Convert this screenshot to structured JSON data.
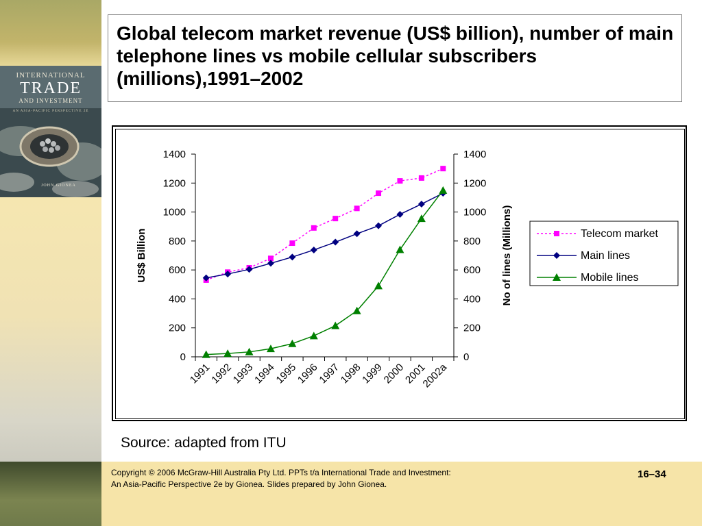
{
  "slide": {
    "title": "Global telecom market revenue (US$ billion), number of main telephone lines vs mobile cellular subscribers (millions),1991–2002",
    "source": "Source: adapted from ITU",
    "copyright_line1": "Copyright © 2006 McGraw-Hill Australia Pty Ltd. PPTs t/a International Trade and Investment:",
    "copyright_line2": "An Asia-Pacific Perspective 2e by Gionea. Slides prepared by John Gionea.",
    "slide_number": "16–34"
  },
  "cover": {
    "line1": "INTERNATIONAL",
    "line2": "TRADE",
    "line3": "AND INVESTMENT",
    "line4": "AN ASIA-PACIFIC PERSPECTIVE 2E",
    "author": "JOHN GIONEA"
  },
  "chart_data": {
    "type": "line",
    "title": "",
    "x": [
      "1991",
      "1992",
      "1993",
      "1994",
      "1995",
      "1996",
      "1997",
      "1998",
      "1999",
      "2000",
      "2001",
      "2002a"
    ],
    "ylabel_left": "US$ Billion",
    "ylabel_right": "No of lines (Millions)",
    "ylim_left": [
      0,
      1400
    ],
    "ylim_right": [
      0,
      1400
    ],
    "yticks": [
      0,
      200,
      400,
      600,
      800,
      1000,
      1200,
      1400
    ],
    "grid": false,
    "legend_position": "right",
    "series": [
      {
        "name": "Telecom market",
        "axis": "left",
        "color": "#ff00ff",
        "line_style": "dotted",
        "marker": "square",
        "values": [
          530,
          585,
          615,
          680,
          785,
          890,
          955,
          1025,
          1130,
          1215,
          1235,
          1300
        ]
      },
      {
        "name": "Main lines",
        "axis": "right",
        "color": "#000080",
        "line_style": "solid",
        "marker": "diamond",
        "values": [
          545,
          572,
          604,
          646,
          689,
          738,
          792,
          850,
          905,
          984,
          1055,
          1130
        ]
      },
      {
        "name": "Mobile lines",
        "axis": "right",
        "color": "#008000",
        "line_style": "solid",
        "marker": "triangle",
        "values": [
          16,
          23,
          34,
          56,
          91,
          145,
          215,
          318,
          490,
          740,
          955,
          1150
        ]
      }
    ]
  }
}
